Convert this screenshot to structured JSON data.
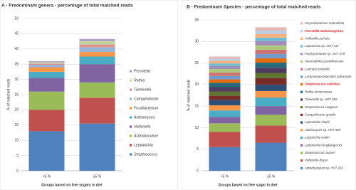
{
  "chart_data": [
    {
      "type": "stacked_bar",
      "title": "A - Predominant genera - percentage of total matched reads",
      "ylabel": "% of matched reads",
      "xlabel": "Groups based on free sugars in diet",
      "categories": [
        "<5 %",
        "≥5 %"
      ],
      "ylim": [
        0,
        50
      ],
      "yticks": [
        0,
        5,
        10,
        15,
        20,
        25,
        30,
        35,
        40,
        45,
        50
      ],
      "grid": true,
      "series": [
        {
          "name": "Streptococcus",
          "color": "#4f81bd",
          "values": [
            13,
            15.5
          ]
        },
        {
          "name": "Leptotrichia",
          "color": "#c0504d",
          "values": [
            7,
            8.5
          ]
        },
        {
          "name": "Actinobaculum",
          "color": "#9bbb59",
          "values": [
            6,
            5
          ]
        },
        {
          "name": "Veillonella",
          "color": "#8064a2",
          "values": [
            4.5,
            6
          ]
        },
        {
          "name": "Actinomyces",
          "color": "#4bacc6",
          "values": [
            2,
            2.5
          ]
        },
        {
          "name": "Fusobacterium",
          "color": "#f79646",
          "values": [
            1.5,
            1.5
          ]
        },
        {
          "name": "Campylobacter",
          "color": "#95b3d7",
          "values": [
            0.8,
            1.5
          ]
        },
        {
          "name": "Tannerella",
          "color": "#d99694",
          "values": [
            0.4,
            1
          ]
        },
        {
          "name": "Rothia",
          "color": "#c3d69b",
          "values": [
            0.4,
            1
          ]
        },
        {
          "name": "Prevotella",
          "color": "#b3a2c7",
          "values": [
            0.4,
            0.8
          ]
        }
      ]
    },
    {
      "type": "stacked_bar",
      "title": "B - Predominant Species - percentage of total matched reads",
      "ylabel": "% of matched reads",
      "xlabel": "Groups based on free sugar in diet",
      "categories": [
        "<5 %",
        "≥5 %"
      ],
      "ylim": [
        0,
        35
      ],
      "yticks": [
        0,
        5,
        10,
        15,
        20,
        25,
        30,
        35
      ],
      "grid": true,
      "series": [
        {
          "name": "Actinobaculum sp. HOT 183",
          "color": "#4f81bd",
          "values": [
            5.5,
            6.5
          ]
        },
        {
          "name": "Veillonella dispar",
          "color": "#c0504d",
          "values": [
            3.5,
            4
          ]
        },
        {
          "name": "Streptococcus mutans",
          "color": "#9bbb59",
          "values": [
            2,
            2.5
          ]
        },
        {
          "name": "Leptotrichia hongkongensis",
          "color": "#8064a2",
          "values": [
            1.5,
            2
          ]
        },
        {
          "name": "Leptotrichia wadei",
          "color": "#4bacc6",
          "values": [
            1.5,
            2
          ]
        },
        {
          "name": "Actinomyces sp. HOT 448",
          "color": "#f79646",
          "values": [
            1.2,
            1.5
          ]
        },
        {
          "name": "Leptotrichia shahii",
          "color": "#2c4d75",
          "values": [
            1.2,
            1.5
          ]
        },
        {
          "name": "Campylobacter gracilis",
          "color": "#772c2a",
          "values": [
            1,
            1.5
          ]
        },
        {
          "name": "Streptococcus sanguinis",
          "color": "#5f7530",
          "values": [
            1,
            1.2
          ]
        },
        {
          "name": "Tannerella sp. HOT 286",
          "color": "#4d3b62",
          "values": [
            1,
            1.2
          ]
        },
        {
          "name": "Rothia dentocariosa",
          "color": "#276a7c",
          "values": [
            1,
            1.2
          ]
        },
        {
          "name": "Streptococcus sobrinus",
          "color": "#e46c0a",
          "values": [
            0.8,
            1
          ],
          "label_color": "#e0202a"
        },
        {
          "name": "Lachnoanaerobaculum saburreum",
          "color": "#729aca",
          "values": [
            0.8,
            1
          ]
        },
        {
          "name": "Lautropia mirabilis",
          "color": "#cd7371",
          "values": [
            0.8,
            1
          ]
        },
        {
          "name": "Haemophilus parainfluenzae",
          "color": "#afc97a",
          "values": [
            0.8,
            1
          ]
        },
        {
          "name": "Porphyromonas sp. HOT 279",
          "color": "#a18cbb",
          "values": [
            0.7,
            1
          ]
        },
        {
          "name": "Leptotrichia sp. HOT 417",
          "color": "#6fbdd2",
          "values": [
            0.6,
            0.8
          ]
        },
        {
          "name": "Veillonella parvula",
          "color": "#f9b07a",
          "values": [
            0.6,
            0.8
          ]
        },
        {
          "name": "Prevotella melaninogenica",
          "color": "#b9cde5",
          "values": [
            0.5,
            0.8
          ],
          "label_color": "#e0202a"
        },
        {
          "name": "Corynebacterium matruchotii",
          "color": "#e6b9b8",
          "values": [
            0.5,
            0.8
          ]
        }
      ]
    }
  ]
}
